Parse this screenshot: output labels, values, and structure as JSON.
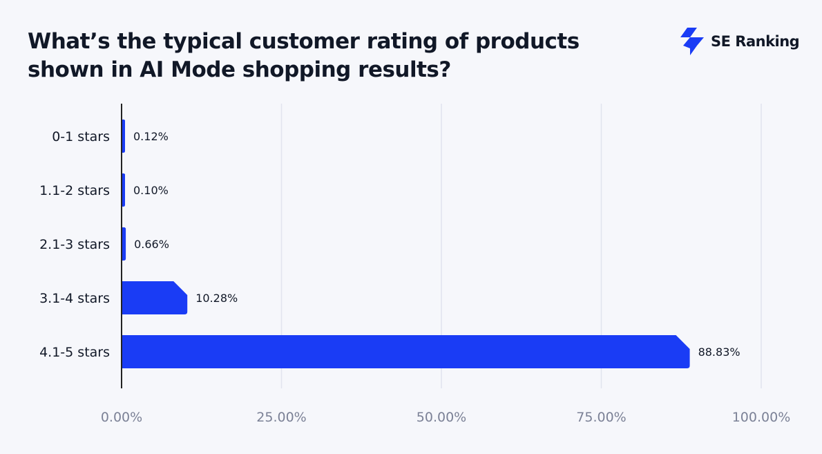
{
  "title": "What’s the typical customer rating of products shown in AI Mode shopping results?",
  "brand": {
    "name": "SE Ranking",
    "icon": "se-ranking-logo-icon",
    "color": "#1a3cf5"
  },
  "chart_data": {
    "type": "bar",
    "orientation": "horizontal",
    "categories": [
      "0-1 stars",
      "1.1-2 stars",
      "2.1-3 stars",
      "3.1-4 stars",
      "4.1-5 stars"
    ],
    "values": [
      0.12,
      0.1,
      0.66,
      10.28,
      88.83
    ],
    "data_labels": [
      "0.12%",
      "0.10%",
      "0.66%",
      "10.28%",
      "88.83%"
    ],
    "xlim": [
      0,
      100
    ],
    "x_ticks": [
      0,
      25,
      50,
      75,
      100
    ],
    "x_tick_labels": [
      "0.00%",
      "25.00%",
      "50.00%",
      "75.00%",
      "100.00%"
    ],
    "grid": "vertical",
    "bar_color": "#1a3cf5"
  }
}
